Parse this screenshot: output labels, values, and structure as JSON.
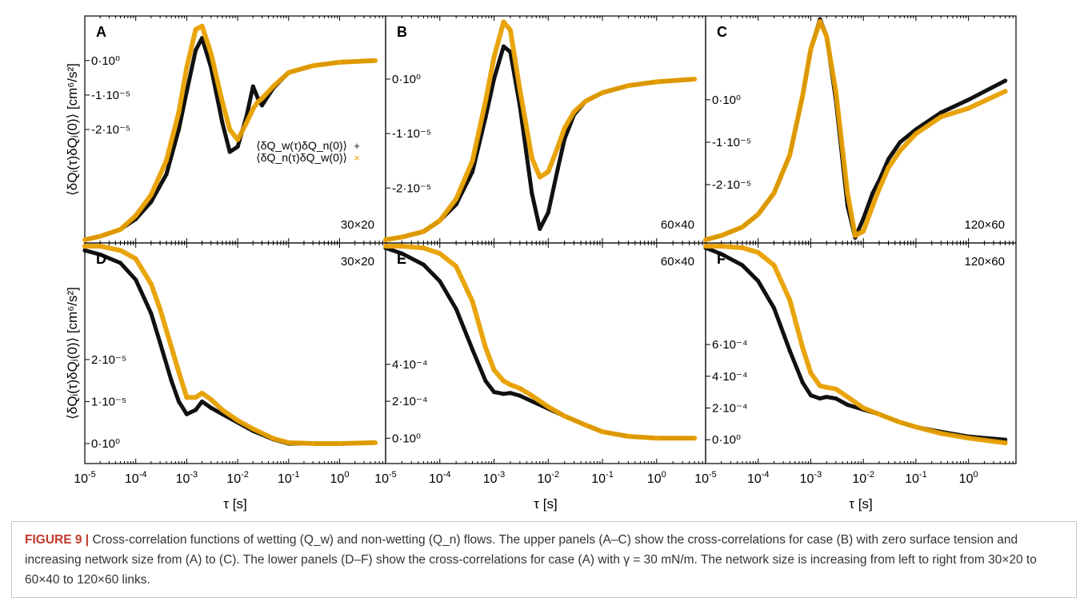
{
  "figure": {
    "ylabel": "⟨δQᵢ(τ)δQⱼ(0)⟩ [cm⁶/s²]",
    "xlabel": "τ [s]",
    "x_tick_labels": [
      "10⁻⁵",
      "10⁻⁴",
      "10⁻³",
      "10⁻²",
      "10⁻¹",
      "10⁰"
    ],
    "legend": [
      "⟨δQ_w(τ)δQ_n(0)⟩",
      "⟨δQ_n(τ)δQ_w(0)⟩"
    ],
    "colors": {
      "series_w": "#111111",
      "series_n": "#e8a000",
      "axis": "#000000"
    }
  },
  "caption": {
    "label": "FIGURE 9 |",
    "text": "Cross-correlation functions of wetting (Q_w) and non-wetting (Q_n) flows. The upper panels (A–C) show the cross-correlations for case (B) with zero surface tension and increasing network size from (A) to (C). The lower panels (D–F) show the cross-correlations for case (A) with γ = 30 mN/m. The network size is increasing from left to right from 30×20 to 60×40 to 120×60 links."
  },
  "chart_data": [
    {
      "panel": "A",
      "type": "line",
      "size_label": "30×20",
      "xscale": "log",
      "xlim": [
        1e-05,
        8
      ],
      "ylim": [
        -5.2e-05,
        1.2e-05
      ],
      "yticks": [
        {
          "v": 0,
          "label": "0·10⁰"
        },
        {
          "v": -1e-05,
          "label": "-1·10⁻⁵"
        },
        {
          "v": -2e-05,
          "label": "-2·10⁻⁵"
        }
      ],
      "series": [
        {
          "name": "⟨δQ_w(τ)δQ_n(0)⟩",
          "x": [
            1e-05,
            2e-05,
            5e-05,
            0.0001,
            0.0002,
            0.0004,
            0.0007,
            0.001,
            0.0015,
            0.002,
            0.003,
            0.005,
            0.007,
            0.01,
            0.015,
            0.02,
            0.025,
            0.03,
            0.05,
            0.1,
            0.3,
            1,
            5
          ],
          "y": [
            -5.2e-05,
            -5.1e-05,
            -4.9e-05,
            -4.6e-05,
            -4.1e-05,
            -3.3e-05,
            -2e-05,
            -9e-06,
            3e-06,
            6.5e-06,
            -2e-06,
            -1.8e-05,
            -2.65e-05,
            -2.5e-05,
            -1.6e-05,
            -7.5e-06,
            -1.1e-05,
            -1.3e-05,
            -8e-06,
            -3.5e-06,
            -1.5e-06,
            -5e-07,
            0
          ]
        },
        {
          "name": "⟨δQ_n(τ)δQ_w(0)⟩",
          "x": [
            1e-05,
            2e-05,
            5e-05,
            0.0001,
            0.0002,
            0.0004,
            0.0007,
            0.001,
            0.0015,
            0.002,
            0.003,
            0.005,
            0.007,
            0.01,
            0.015,
            0.02,
            0.025,
            0.03,
            0.05,
            0.1,
            0.3,
            1,
            5
          ],
          "y": [
            -5.2e-05,
            -5.1e-05,
            -4.9e-05,
            -4.5e-05,
            -3.9e-05,
            -2.9e-05,
            -1.5e-05,
            -2e-06,
            9e-06,
            1e-05,
            2e-06,
            -1.2e-05,
            -2e-05,
            -2.3e-05,
            -1.8e-05,
            -1.4e-05,
            -1.2e-05,
            -1.1e-05,
            -7.5e-06,
            -3.5e-06,
            -1.5e-06,
            -5e-07,
            0
          ]
        }
      ]
    },
    {
      "panel": "B",
      "type": "line",
      "size_label": "60×40",
      "xscale": "log",
      "xlim": [
        1e-05,
        8
      ],
      "ylim": [
        -2.95e-05,
        1.1e-05
      ],
      "yticks": [
        {
          "v": 0,
          "label": "0·10⁰"
        },
        {
          "v": -1e-05,
          "label": "-1·10⁻⁵"
        },
        {
          "v": -2e-05,
          "label": "-2·10⁻⁵"
        }
      ],
      "series": [
        {
          "name": "⟨δQ_w(τ)δQ_n(0)⟩",
          "x": [
            1e-05,
            2e-05,
            5e-05,
            0.0001,
            0.0002,
            0.0004,
            0.0007,
            0.001,
            0.0015,
            0.002,
            0.003,
            0.005,
            0.007,
            0.01,
            0.015,
            0.02,
            0.03,
            0.05,
            0.1,
            0.3,
            1,
            5
          ],
          "y": [
            -2.95e-05,
            -2.9e-05,
            -2.8e-05,
            -2.6e-05,
            -2.3e-05,
            -1.7e-05,
            -7e-06,
            0,
            6e-06,
            5e-06,
            -5e-06,
            -2.1e-05,
            -2.75e-05,
            -2.45e-05,
            -1.65e-05,
            -1.1e-05,
            -6.5e-06,
            -4e-06,
            -2.5e-06,
            -1.2e-06,
            -5e-07,
            0
          ]
        },
        {
          "name": "⟨δQ_n(τ)δQ_w(0)⟩",
          "x": [
            1e-05,
            2e-05,
            5e-05,
            0.0001,
            0.0002,
            0.0004,
            0.0007,
            0.001,
            0.0015,
            0.002,
            0.003,
            0.005,
            0.007,
            0.01,
            0.015,
            0.02,
            0.03,
            0.05,
            0.1,
            0.3,
            1,
            5
          ],
          "y": [
            -2.95e-05,
            -2.9e-05,
            -2.8e-05,
            -2.6e-05,
            -2.2e-05,
            -1.5e-05,
            -4e-06,
            4e-06,
            1.05e-05,
            9e-06,
            -2e-06,
            -1.45e-05,
            -1.8e-05,
            -1.7e-05,
            -1.25e-05,
            -9e-06,
            -6e-06,
            -4e-06,
            -2.5e-06,
            -1.2e-06,
            -5e-07,
            0
          ]
        }
      ]
    },
    {
      "panel": "C",
      "type": "line",
      "size_label": "120×60",
      "xscale": "log",
      "xlim": [
        1e-05,
        8
      ],
      "ylim": [
        -3.3e-05,
        1.9e-05
      ],
      "yticks": [
        {
          "v": 0,
          "label": "0·10⁰"
        },
        {
          "v": -1e-05,
          "label": "-1·10⁻⁵"
        },
        {
          "v": -2e-05,
          "label": "-2·10⁻⁵"
        }
      ],
      "series": [
        {
          "name": "⟨δQ_w(τ)δQ_n(0)⟩",
          "x": [
            1e-05,
            2e-05,
            5e-05,
            0.0001,
            0.0002,
            0.0004,
            0.0007,
            0.001,
            0.0015,
            0.002,
            0.003,
            0.005,
            0.007,
            0.01,
            0.015,
            0.02,
            0.03,
            0.05,
            0.1,
            0.3,
            1,
            5
          ],
          "y": [
            -3.3e-05,
            -3.2e-05,
            -3e-05,
            -2.7e-05,
            -2.2e-05,
            -1.3e-05,
            1e-06,
            1.2e-05,
            1.9e-05,
            1.5e-05,
            0,
            -2.5e-05,
            -3.25e-05,
            -2.8e-05,
            -2.2e-05,
            -1.9e-05,
            -1.4e-05,
            -1e-05,
            -7e-06,
            -3e-06,
            0,
            4.5e-06
          ]
        },
        {
          "name": "⟨δQ_n(τ)δQ_w(0)⟩",
          "x": [
            1e-05,
            2e-05,
            5e-05,
            0.0001,
            0.0002,
            0.0004,
            0.0007,
            0.001,
            0.0015,
            0.002,
            0.003,
            0.005,
            0.007,
            0.01,
            0.015,
            0.02,
            0.03,
            0.05,
            0.1,
            0.3,
            1,
            5
          ],
          "y": [
            -3.3e-05,
            -3.2e-05,
            -3e-05,
            -2.7e-05,
            -2.2e-05,
            -1.3e-05,
            1e-06,
            1.2e-05,
            1.85e-05,
            1.5e-05,
            2e-06,
            -2.2e-05,
            -3.2e-05,
            -3.1e-05,
            -2.5e-05,
            -2.1e-05,
            -1.6e-05,
            -1.2e-05,
            -8e-06,
            -4e-06,
            -2e-06,
            2e-06
          ]
        }
      ]
    },
    {
      "panel": "D",
      "type": "line",
      "size_label": "30×20",
      "xscale": "log",
      "xlim": [
        1e-05,
        8
      ],
      "ylim": [
        -4e-06,
        4.7e-05
      ],
      "yticks": [
        {
          "v": 0,
          "label": "0·10⁰"
        },
        {
          "v": 1e-05,
          "label": "1·10⁻⁵"
        },
        {
          "v": 2e-05,
          "label": "2·10⁻⁵"
        }
      ],
      "series": [
        {
          "name": "⟨δQ_w(τ)δQ_n(0)⟩",
          "x": [
            1e-05,
            2e-05,
            5e-05,
            0.0001,
            0.0002,
            0.0003,
            0.0005,
            0.0007,
            0.001,
            0.0015,
            0.002,
            0.003,
            0.005,
            0.01,
            0.02,
            0.05,
            0.1,
            0.3,
            1,
            5
          ],
          "y": [
            4.6e-05,
            4.5e-05,
            4.3e-05,
            3.9e-05,
            3.1e-05,
            2.4e-05,
            1.5e-05,
            1e-05,
            7e-06,
            8e-06,
            1e-05,
            8.5e-06,
            7e-06,
            5e-06,
            3e-06,
            1e-06,
            0,
            0,
            0,
            2e-07
          ]
        },
        {
          "name": "⟨δQ_n(τ)δQ_w(0)⟩",
          "x": [
            1e-05,
            2e-05,
            5e-05,
            0.0001,
            0.0002,
            0.0003,
            0.0005,
            0.0007,
            0.001,
            0.0015,
            0.002,
            0.003,
            0.005,
            0.01,
            0.02,
            0.05,
            0.1,
            0.3,
            1,
            5
          ],
          "y": [
            4.7e-05,
            4.7e-05,
            4.6e-05,
            4.4e-05,
            3.8e-05,
            3.2e-05,
            2.3e-05,
            1.7e-05,
            1.1e-05,
            1.1e-05,
            1.2e-05,
            1.05e-05,
            8e-06,
            5.5e-06,
            3.5e-06,
            1.2e-06,
            2e-07,
            0,
            0,
            2e-07
          ]
        }
      ]
    },
    {
      "panel": "E",
      "type": "line",
      "size_label": "60×40",
      "xscale": "log",
      "xlim": [
        1e-05,
        8
      ],
      "ylim": [
        -0.00012,
        0.00104
      ],
      "yticks": [
        {
          "v": 0,
          "label": "0·10⁰"
        },
        {
          "v": 0.0002,
          "label": "2·10⁻⁴"
        },
        {
          "v": 0.0004,
          "label": "4·10⁻⁴"
        }
      ],
      "series": [
        {
          "name": "⟨δQ_w(τ)δQ_n(0)⟩",
          "x": [
            1e-05,
            2e-05,
            5e-05,
            0.0001,
            0.0002,
            0.0004,
            0.0007,
            0.001,
            0.0015,
            0.002,
            0.003,
            0.005,
            0.01,
            0.02,
            0.05,
            0.1,
            0.3,
            1,
            5
          ],
          "y": [
            0.00103,
            0.001,
            0.00094,
            0.00085,
            0.0007,
            0.00048,
            0.00031,
            0.00025,
            0.00024,
            0.000245,
            0.00023,
            0.0002,
            0.00016,
            0.00012,
            7e-05,
            3.5e-05,
            1e-05,
            0,
            0
          ]
        },
        {
          "name": "⟨δQ_n(τ)δQ_w(0)⟩",
          "x": [
            1e-05,
            2e-05,
            5e-05,
            0.0001,
            0.0002,
            0.0004,
            0.0007,
            0.001,
            0.0015,
            0.002,
            0.003,
            0.005,
            0.01,
            0.02,
            0.05,
            0.1,
            0.3,
            1,
            5
          ],
          "y": [
            0.00104,
            0.00104,
            0.00103,
            0.001,
            0.00093,
            0.00074,
            0.00049,
            0.00037,
            0.00031,
            0.00029,
            0.00027,
            0.00023,
            0.00017,
            0.00012,
            7e-05,
            3.5e-05,
            1e-05,
            0,
            0
          ]
        }
      ]
    },
    {
      "panel": "F",
      "type": "line",
      "size_label": "120×60",
      "xscale": "log",
      "xlim": [
        1e-05,
        8
      ],
      "ylim": [
        -0.00013,
        0.00122
      ],
      "yticks": [
        {
          "v": 0,
          "label": "0·10⁰"
        },
        {
          "v": 0.0002,
          "label": "2·10⁻⁴"
        },
        {
          "v": 0.0004,
          "label": "4·10⁻⁴"
        },
        {
          "v": 0.0006,
          "label": "6·10⁻⁴"
        }
      ],
      "series": [
        {
          "name": "⟨δQ_w(τ)δQ_n(0)⟩",
          "x": [
            1e-05,
            2e-05,
            5e-05,
            0.0001,
            0.0002,
            0.0004,
            0.0007,
            0.001,
            0.0015,
            0.002,
            0.003,
            0.005,
            0.01,
            0.02,
            0.05,
            0.1,
            0.3,
            1,
            5
          ],
          "y": [
            0.00121,
            0.00117,
            0.0011,
            0.001,
            0.00083,
            0.00056,
            0.00036,
            0.00028,
            0.00026,
            0.00027,
            0.00026,
            0.00022,
            0.00019,
            0.00016,
            0.00011,
            8e-05,
            5e-05,
            2e-05,
            0
          ]
        },
        {
          "name": "⟨δQ_n(τ)δQ_w(0)⟩",
          "x": [
            1e-05,
            2e-05,
            5e-05,
            0.0001,
            0.0002,
            0.0004,
            0.0007,
            0.001,
            0.0015,
            0.002,
            0.003,
            0.005,
            0.01,
            0.02,
            0.05,
            0.1,
            0.3,
            1,
            5
          ],
          "y": [
            0.00122,
            0.00122,
            0.00121,
            0.00118,
            0.0011,
            0.00088,
            0.00058,
            0.00042,
            0.00034,
            0.00033,
            0.00032,
            0.00027,
            0.0002,
            0.00016,
            0.00011,
            8e-05,
            4e-05,
            1e-05,
            -2e-05
          ]
        }
      ]
    }
  ]
}
